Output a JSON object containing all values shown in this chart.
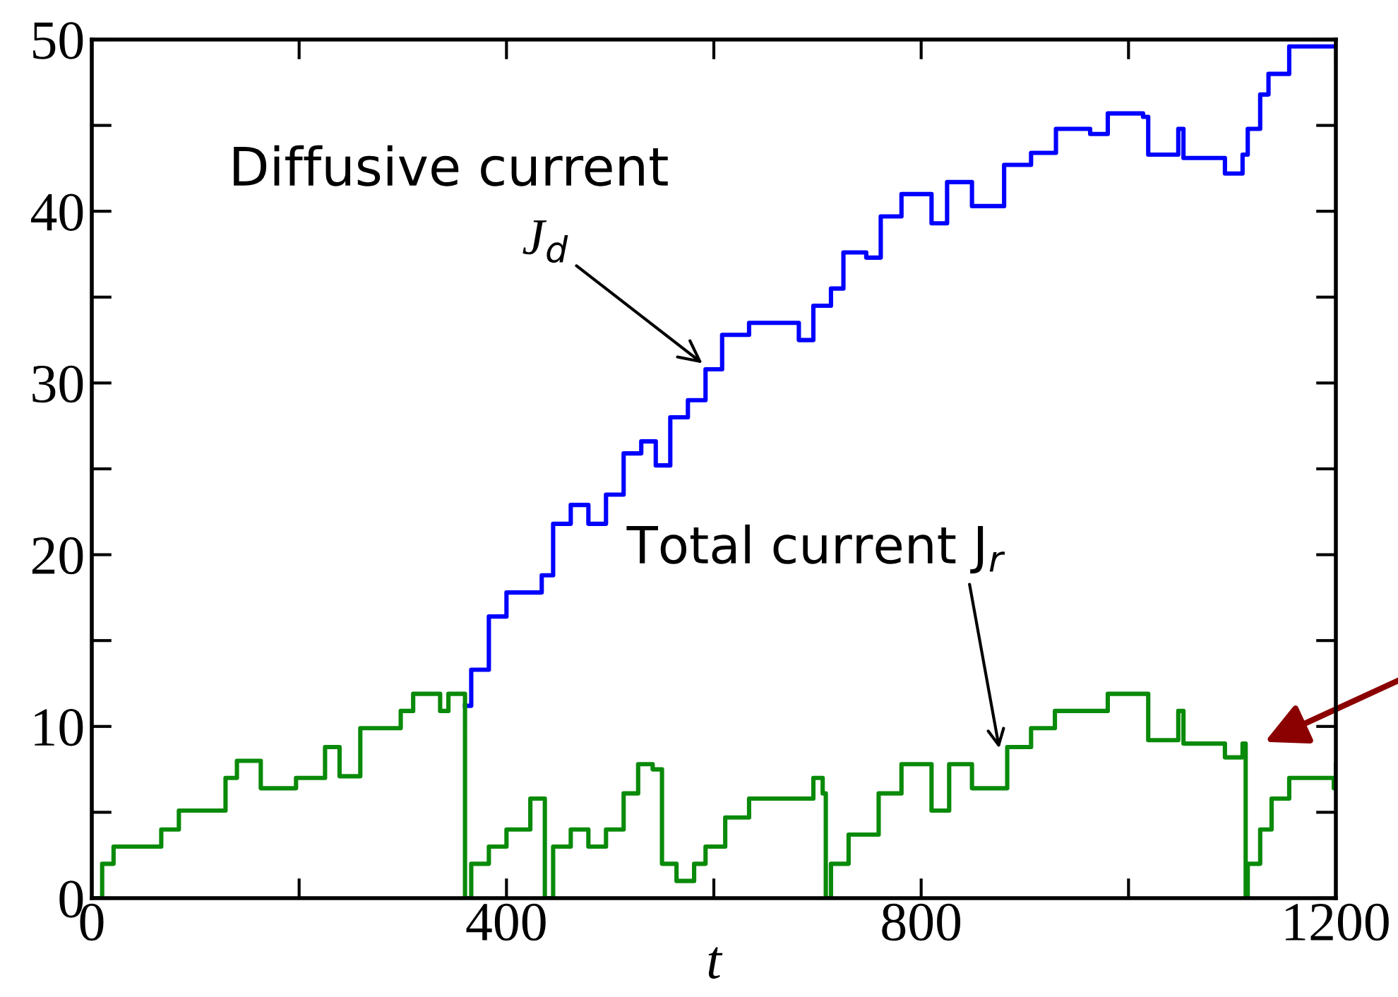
{
  "chart_data": {
    "type": "step",
    "xlabel": "t",
    "xlim": [
      0,
      1200
    ],
    "ylim": [
      0,
      50
    ],
    "xticks": [
      0,
      {
        "value": 200,
        "label": null
      },
      400,
      {
        "value": 600,
        "label": null
      },
      800,
      {
        "value": 1000,
        "label": null
      },
      1200
    ],
    "yticks": [
      0,
      {
        "value": 5,
        "label": null
      },
      10,
      {
        "value": 15,
        "label": null
      },
      20,
      {
        "value": 25,
        "label": null
      },
      30,
      {
        "value": 35,
        "label": null
      },
      40,
      {
        "value": 45,
        "label": null
      },
      50
    ],
    "grid": false,
    "legend": false,
    "marker": "none",
    "line_style": "solid",
    "annotations": [
      "Diffusive current",
      {
        "text": "J$_{d}$",
        "x": 592,
        "y": 31
      },
      "Total current J$_{r}$"
    ],
    "series": [
      {
        "color": "#0000ff",
        "x": [
          360,
          366,
          383,
          400,
          434,
          445,
          462,
          479,
          496,
          513,
          530,
          544,
          558,
          575,
          592,
          608,
          634,
          682,
          696,
          713,
          725,
          747,
          761,
          781,
          810,
          825,
          849,
          875,
          880,
          906,
          930,
          963,
          980,
          1014,
          1019,
          1048,
          1053,
          1093,
          1110,
          1115,
          1127,
          1135,
          1155,
          1200
        ],
        "values": [
          11.2,
          13.3,
          16.4,
          17.8,
          18.8,
          21.8,
          22.9,
          21.8,
          23.5,
          25.9,
          26.6,
          25.2,
          28,
          29,
          30.8,
          32.8,
          33.5,
          32.5,
          34.5,
          35.5,
          37.6,
          37.3,
          39.7,
          41,
          39.3,
          41.7,
          40.3,
          40.3,
          42.7,
          43.4,
          44.8,
          44.5,
          45.7,
          45.5,
          43.3,
          44.8,
          43.1,
          42.2,
          43.3,
          44.8,
          46.8,
          48,
          49.6,
          49.6
        ]
      },
      {
        "color": "#0a8a0a",
        "x": [
          0,
          10,
          21,
          58,
          67,
          84,
          115,
          129,
          140,
          163,
          197,
          219,
          225,
          239,
          259,
          287,
          298,
          310,
          336,
          344,
          359,
          360,
          366,
          383,
          400,
          423,
          434,
          437,
          445,
          462,
          479,
          496,
          513,
          527,
          541,
          550,
          564,
          581,
          592,
          611,
          634,
          679,
          696,
          705,
          708,
          713,
          730,
          759,
          781,
          810,
          827,
          849,
          875,
          883,
          906,
          929,
          963,
          980,
          1014,
          1019,
          1048,
          1053,
          1093,
          1110,
          1113,
          1115,
          1127,
          1138,
          1155,
          1198,
          1200
        ],
        "values": [
          0,
          2,
          3,
          3,
          4,
          5.1,
          5.1,
          7,
          8,
          6.4,
          7,
          7,
          8.8,
          7.1,
          9.9,
          9.9,
          10.9,
          11.9,
          10.9,
          11.9,
          11.9,
          0,
          2,
          3,
          4,
          5.8,
          5.8,
          0,
          3,
          4,
          3,
          4,
          6.1,
          7.8,
          7.5,
          2,
          1,
          2,
          3,
          4.7,
          5.8,
          5.8,
          7,
          6.1,
          0,
          2,
          3.7,
          6.1,
          7.8,
          5.1,
          7.8,
          6.4,
          6.4,
          8.8,
          9.9,
          10.9,
          10.9,
          11.9,
          11.9,
          9.2,
          10.9,
          9,
          8.2,
          9,
          0,
          2,
          4,
          5.8,
          7,
          6.4,
          7.8
        ]
      }
    ]
  }
}
